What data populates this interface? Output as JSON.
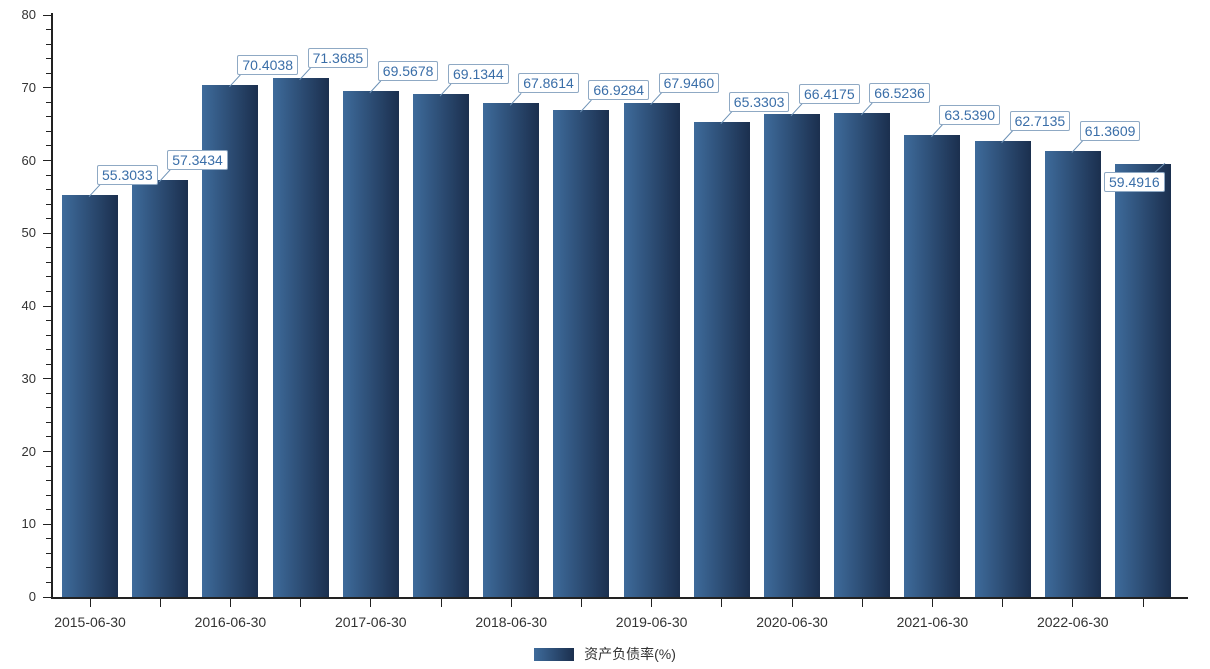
{
  "chart_data": {
    "type": "bar",
    "title": "",
    "legend": "资产负债率(%)",
    "legend_position": "bottom-center",
    "series": [
      {
        "name": "资产负债率(%)",
        "values": [
          55.3033,
          57.3434,
          70.4038,
          71.3685,
          69.5678,
          69.1344,
          67.8614,
          66.9284,
          67.946,
          65.3303,
          66.4175,
          66.5236,
          63.539,
          62.7135,
          61.3609,
          59.4916
        ],
        "value_labels": [
          "55.3033",
          "57.3434",
          "70.4038",
          "71.3685",
          "69.5678",
          "69.1344",
          "67.8614",
          "66.9284",
          "67.9460",
          "65.3303",
          "66.4175",
          "66.5236",
          "63.5390",
          "62.7135",
          "61.3609",
          "59.4916"
        ]
      }
    ],
    "x_tick_labels": [
      "2015-06-30",
      "2016-06-30",
      "2017-06-30",
      "2018-06-30",
      "2019-06-30",
      "2020-06-30",
      "2021-06-30",
      "2022-06-30"
    ],
    "x_label_every_n_bars": 2,
    "ylim": [
      0,
      80
    ],
    "y_major_step": 10,
    "y_minor_step": 2,
    "grid": "off",
    "colors": {
      "bar_gradient_left": "#3E6B9B",
      "bar_gradient_right": "#1B2F4E",
      "value_label_text": "#3A6EA8",
      "value_label_border": "#8FA9C4",
      "connector": "#6C91B5",
      "axis": "#222222",
      "tick_label": "#333333",
      "background": "#ffffff"
    }
  }
}
